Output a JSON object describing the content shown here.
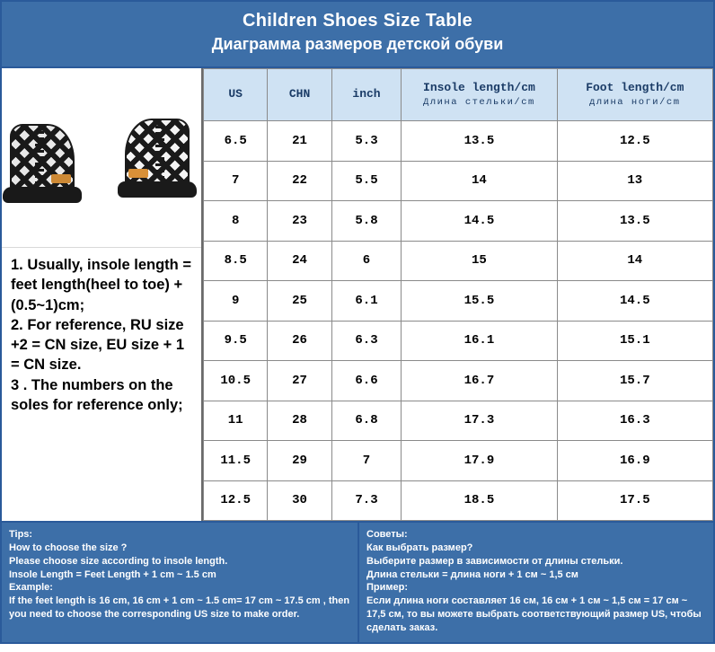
{
  "colors": {
    "header_bg": "#3d6fa8",
    "header_text": "#ffffff",
    "border": "#2a5a9a",
    "th_bg": "#cfe2f3",
    "th_text": "#1a3b66",
    "cell_border": "#8a8a8a",
    "notes_text": "#000000"
  },
  "header": {
    "title_en": "Children Shoes Size Table",
    "title_ru": "Диаграмма размеров детской обуви"
  },
  "notes": {
    "text": "1. Usually, insole length = feet length(heel to toe) + (0.5~1)cm;\n2. For reference, RU size +2 = CN size, EU size + 1 = CN size.\n3 . The numbers on the soles for reference only;"
  },
  "table": {
    "columns": [
      {
        "key": "us",
        "label": "US",
        "sub": ""
      },
      {
        "key": "chn",
        "label": "CHN",
        "sub": ""
      },
      {
        "key": "inch",
        "label": "inch",
        "sub": ""
      },
      {
        "key": "insole",
        "label": "Insole length/cm",
        "sub": "Длина стельки/cm"
      },
      {
        "key": "foot",
        "label": "Foot length/cm",
        "sub": "длина ноги/cm"
      }
    ],
    "rows": [
      [
        "6.5",
        "21",
        "5.3",
        "13.5",
        "12.5"
      ],
      [
        "7",
        "22",
        "5.5",
        "14",
        "13"
      ],
      [
        "8",
        "23",
        "5.8",
        "14.5",
        "13.5"
      ],
      [
        "8.5",
        "24",
        "6",
        "15",
        "14"
      ],
      [
        "9",
        "25",
        "6.1",
        "15.5",
        "14.5"
      ],
      [
        "9.5",
        "26",
        "6.3",
        "16.1",
        "15.1"
      ],
      [
        "10.5",
        "27",
        "6.6",
        "16.7",
        "15.7"
      ],
      [
        "11",
        "28",
        "6.8",
        "17.3",
        "16.3"
      ],
      [
        "11.5",
        "29",
        "7",
        "17.9",
        "16.9"
      ],
      [
        "12.5",
        "30",
        "7.3",
        "18.5",
        "17.5"
      ]
    ]
  },
  "tips": {
    "en": {
      "head": "Tips:",
      "q": "How to choose the size ?",
      "l1": "Please choose size according to insole length.",
      "l2": "Insole Length = Feet Length + 1 cm ~ 1.5 cm",
      "ex_head": "Example:",
      "ex": "If the feet length is 16 cm, 16 cm + 1 cm ~ 1.5 cm= 17 cm ~ 17.5 cm , then you need to choose the corresponding US size to make order."
    },
    "ru": {
      "head": "Советы:",
      "q": "Как выбрать размер?",
      "l1": "Выберите размер в зависимости от длины стельки.",
      "l2": "Длина стельки = длина ноги + 1 см ~ 1,5 см",
      "ex_head": "Пример:",
      "ex": "Если длина ноги составляет 16 см, 16 см + 1 см ~ 1,5 см = 17 см ~ 17,5 см, то вы можете выбрать соответствующий размер US, чтобы сделать заказ."
    }
  }
}
